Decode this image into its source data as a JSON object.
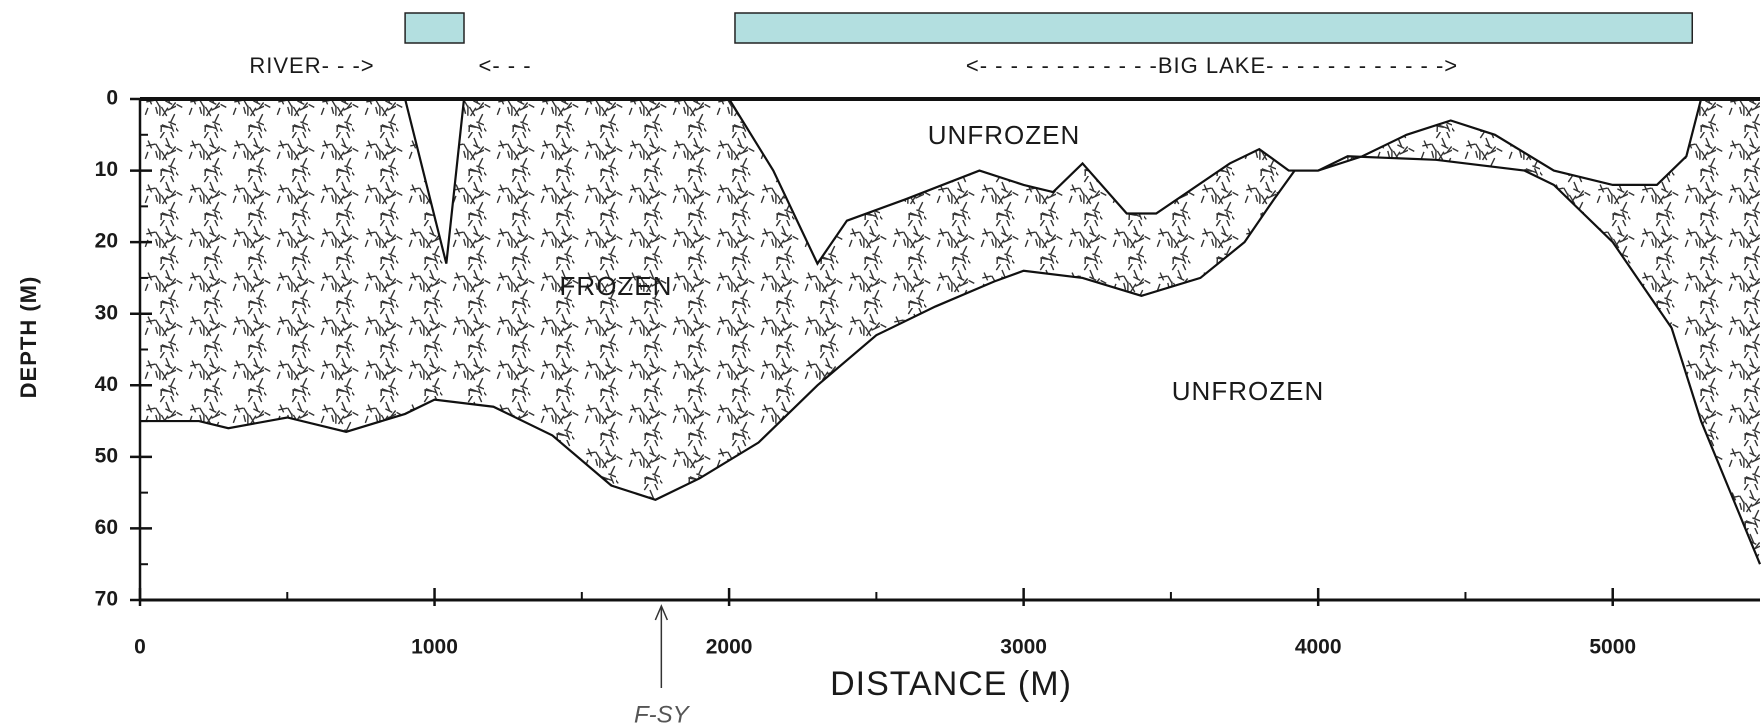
{
  "chart_data": {
    "type": "cross-section",
    "x_label": "DISTANCE (M)",
    "y_label": "DEPTH (M)",
    "xlim": [
      0,
      5500
    ],
    "ylim": [
      0,
      70
    ],
    "y_inverted": true,
    "xticks": [
      0,
      1000,
      2000,
      3000,
      4000,
      5000
    ],
    "yticks": [
      0,
      10,
      20,
      30,
      40,
      50,
      60,
      70
    ],
    "xminorticks": [
      500,
      1500,
      2500,
      3500,
      4500
    ],
    "yminorticks": [
      5,
      15,
      25,
      35,
      45,
      55,
      65
    ],
    "boundaries": [
      {
        "x": [
          0,
          900,
          1040,
          1100,
          2000,
          2150,
          2300,
          2400,
          2600,
          2850,
          3000,
          3100,
          3200,
          3350,
          3450,
          3700,
          3800,
          3900,
          4000,
          4150,
          4300,
          4450,
          4600,
          4800,
          5000,
          5150,
          5250,
          5300,
          5500
        ],
        "depth": [
          0,
          0,
          23,
          0,
          0,
          10,
          23,
          17,
          14,
          10,
          12,
          13,
          9,
          16,
          16,
          9,
          7,
          10,
          10,
          8,
          5,
          3,
          5,
          10,
          12,
          12,
          8,
          0,
          0
        ]
      },
      {
        "x": [
          0,
          200,
          300,
          500,
          700,
          900,
          1000,
          1200,
          1400,
          1600,
          1750,
          1900,
          2100,
          2300,
          2500,
          2700,
          2900,
          3000,
          3200,
          3400,
          3600,
          3750,
          3850,
          3920,
          4000,
          4100,
          4400,
          4700,
          4800,
          5000,
          5200,
          5300,
          5400,
          5500
        ],
        "depth": [
          45,
          45,
          46,
          44.5,
          46.5,
          44,
          42,
          43,
          47,
          54,
          56,
          53,
          48,
          40,
          33,
          29,
          25.5,
          24,
          25,
          27.5,
          25,
          20,
          14,
          10,
          10,
          8,
          8.5,
          10,
          12,
          20,
          32,
          45,
          55,
          65
        ]
      }
    ],
    "water_spans": [
      [
        900,
        1100
      ],
      [
        2020,
        5270
      ]
    ],
    "water_color": "#b3dfe0",
    "annotations": [
      "RIVER- - ->",
      "<- - -",
      "<- - - - - - - - - - - -BIG  LAKE- - - - - - - - - - - ->",
      "UNFROZEN",
      "FROZEN",
      "UNFROZEN"
    ],
    "marker": {
      "text": "F-SY",
      "x": 1770
    }
  }
}
